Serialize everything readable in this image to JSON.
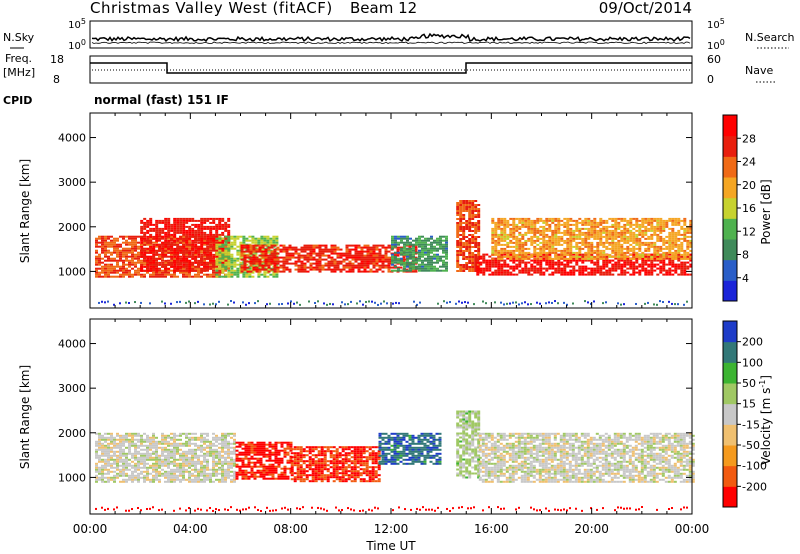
{
  "header": {
    "station": "Christmas Valley West (fitACF)",
    "beam": "Beam 12",
    "date": "09/Oct/2014"
  },
  "nsky_panel": {
    "label": "N.Sky",
    "label_right": "N.Search",
    "ticks_left": [
      "10^5",
      "10^0"
    ],
    "ticks_right": [
      "10^5",
      "10^0"
    ]
  },
  "freq_panel": {
    "label_top": "Freq.",
    "label_unit": "[MHz]",
    "ticks_left": [
      "18",
      "8"
    ],
    "ticks_right": [
      "60",
      "0"
    ],
    "label_right": "Nave"
  },
  "cpid_panel": {
    "label": "CPID",
    "value": "normal (fast) 151 IF"
  },
  "colors": {
    "power": [
      "#1a24d8",
      "#2a5ec8",
      "#3f8a5a",
      "#4fb24f",
      "#c7d22f",
      "#f5a623",
      "#f06a16",
      "#e81e0d",
      "#ff0000"
    ],
    "velocity": [
      "#ff0000",
      "#f25a10",
      "#f59a1e",
      "#f0c070",
      "#c8c8c8",
      "#a0c864",
      "#3cb432",
      "#327878",
      "#1e3cc8"
    ]
  },
  "chart_data": [
    {
      "type": "heatmap",
      "title": "Power",
      "ylabel": "Slant Range [km]",
      "xlabel": "Time UT",
      "ylim": [
        180,
        4550
      ],
      "xlim": [
        0,
        24
      ],
      "yticks": [
        "1000",
        "2000",
        "3000",
        "4000"
      ],
      "xticks": [
        "00:00",
        "04:00",
        "08:00",
        "12:00",
        "16:00",
        "20:00",
        "00:00"
      ],
      "colorbar": {
        "label": "Power [dB]",
        "ticks": [
          "4",
          "8",
          "12",
          "16",
          "20",
          "24",
          "28"
        ],
        "range": [
          0,
          30
        ]
      },
      "regions": [
        {
          "t": [
            0.2,
            5.5
          ],
          "r": [
            900,
            1800
          ],
          "value": 23
        },
        {
          "t": [
            2.0,
            5.5
          ],
          "r": [
            1000,
            2200
          ],
          "value": 26
        },
        {
          "t": [
            5.0,
            7.5
          ],
          "r": [
            900,
            1800
          ],
          "value": 14
        },
        {
          "t": [
            6.0,
            13.0
          ],
          "r": [
            1000,
            1600
          ],
          "value": 25
        },
        {
          "t": [
            12.0,
            14.2
          ],
          "r": [
            1000,
            1800
          ],
          "value": 9
        },
        {
          "t": [
            14.6,
            15.5
          ],
          "r": [
            1000,
            2600
          ],
          "value": 24
        },
        {
          "t": [
            15.4,
            24.0
          ],
          "r": [
            950,
            1400
          ],
          "value": 27
        },
        {
          "t": [
            16.0,
            24.0
          ],
          "r": [
            1300,
            2200
          ],
          "value": 19
        }
      ]
    },
    {
      "type": "heatmap",
      "title": "Velocity",
      "ylabel": "Slant Range [km]",
      "xlabel": "Time UT",
      "ylim": [
        180,
        4550
      ],
      "xlim": [
        0,
        24
      ],
      "yticks": [
        "1000",
        "2000",
        "3000",
        "4000"
      ],
      "xticks": [
        "00:00",
        "04:00",
        "08:00",
        "12:00",
        "16:00",
        "20:00",
        "00:00"
      ],
      "colorbar": {
        "label": "Velocity [m s^-1]",
        "ticks": [
          "200",
          "100",
          "50",
          "15",
          "-15",
          "-50",
          "-100",
          "-200"
        ],
        "range": [
          -250,
          250
        ]
      },
      "regions": [
        {
          "t": [
            0.2,
            5.8
          ],
          "r": [
            900,
            2000
          ],
          "value": 0
        },
        {
          "t": [
            5.8,
            8.0
          ],
          "r": [
            950,
            1800
          ],
          "value": -220
        },
        {
          "t": [
            8.0,
            11.5
          ],
          "r": [
            900,
            1700
          ],
          "value": -200
        },
        {
          "t": [
            11.5,
            14.0
          ],
          "r": [
            1300,
            2000
          ],
          "value": 180
        },
        {
          "t": [
            14.6,
            15.5
          ],
          "r": [
            1000,
            2500
          ],
          "value": 40
        },
        {
          "t": [
            15.5,
            24.0
          ],
          "r": [
            900,
            2000
          ],
          "value": 0
        }
      ]
    }
  ]
}
